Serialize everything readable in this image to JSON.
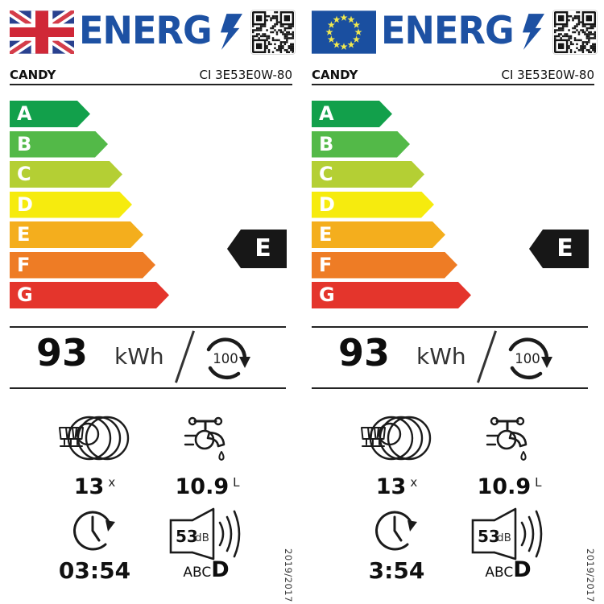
{
  "logo": {
    "text": "ENERG",
    "bolt_icon": "lightning-bolt",
    "color": "#1d51a3"
  },
  "scale": {
    "grades": [
      "A",
      "B",
      "C",
      "D",
      "E",
      "F",
      "G"
    ],
    "colors": [
      "#12a04b",
      "#53b948",
      "#b4cf34",
      "#f6eb0e",
      "#f4ae1d",
      "#ee7c25",
      "#e4352c"
    ]
  },
  "labels": [
    {
      "flag_icon": "uk-flag",
      "brand": "CANDY",
      "model": "CI 3E53E0W-80",
      "rating": "E",
      "energy": {
        "value": "93",
        "unit": "kWh",
        "per_cycles": "100"
      },
      "place_settings": {
        "value": "13",
        "unit": "x"
      },
      "water": {
        "value": "10.9",
        "unit": "L"
      },
      "duration": "03:54",
      "noise": {
        "value": "53",
        "unit": "dB",
        "class_scale": "ABC",
        "class": "D"
      },
      "regulation": "2019/2017"
    },
    {
      "flag_icon": "eu-flag",
      "brand": "CANDY",
      "model": "CI 3E53E0W-80",
      "rating": "E",
      "energy": {
        "value": "93",
        "unit": "kWh",
        "per_cycles": "100"
      },
      "place_settings": {
        "value": "13",
        "unit": "x"
      },
      "water": {
        "value": "10.9",
        "unit": "L"
      },
      "duration": "3:54",
      "noise": {
        "value": "53",
        "unit": "dB",
        "class_scale": "ABC",
        "class": "D"
      },
      "regulation": "2019/2017"
    }
  ]
}
